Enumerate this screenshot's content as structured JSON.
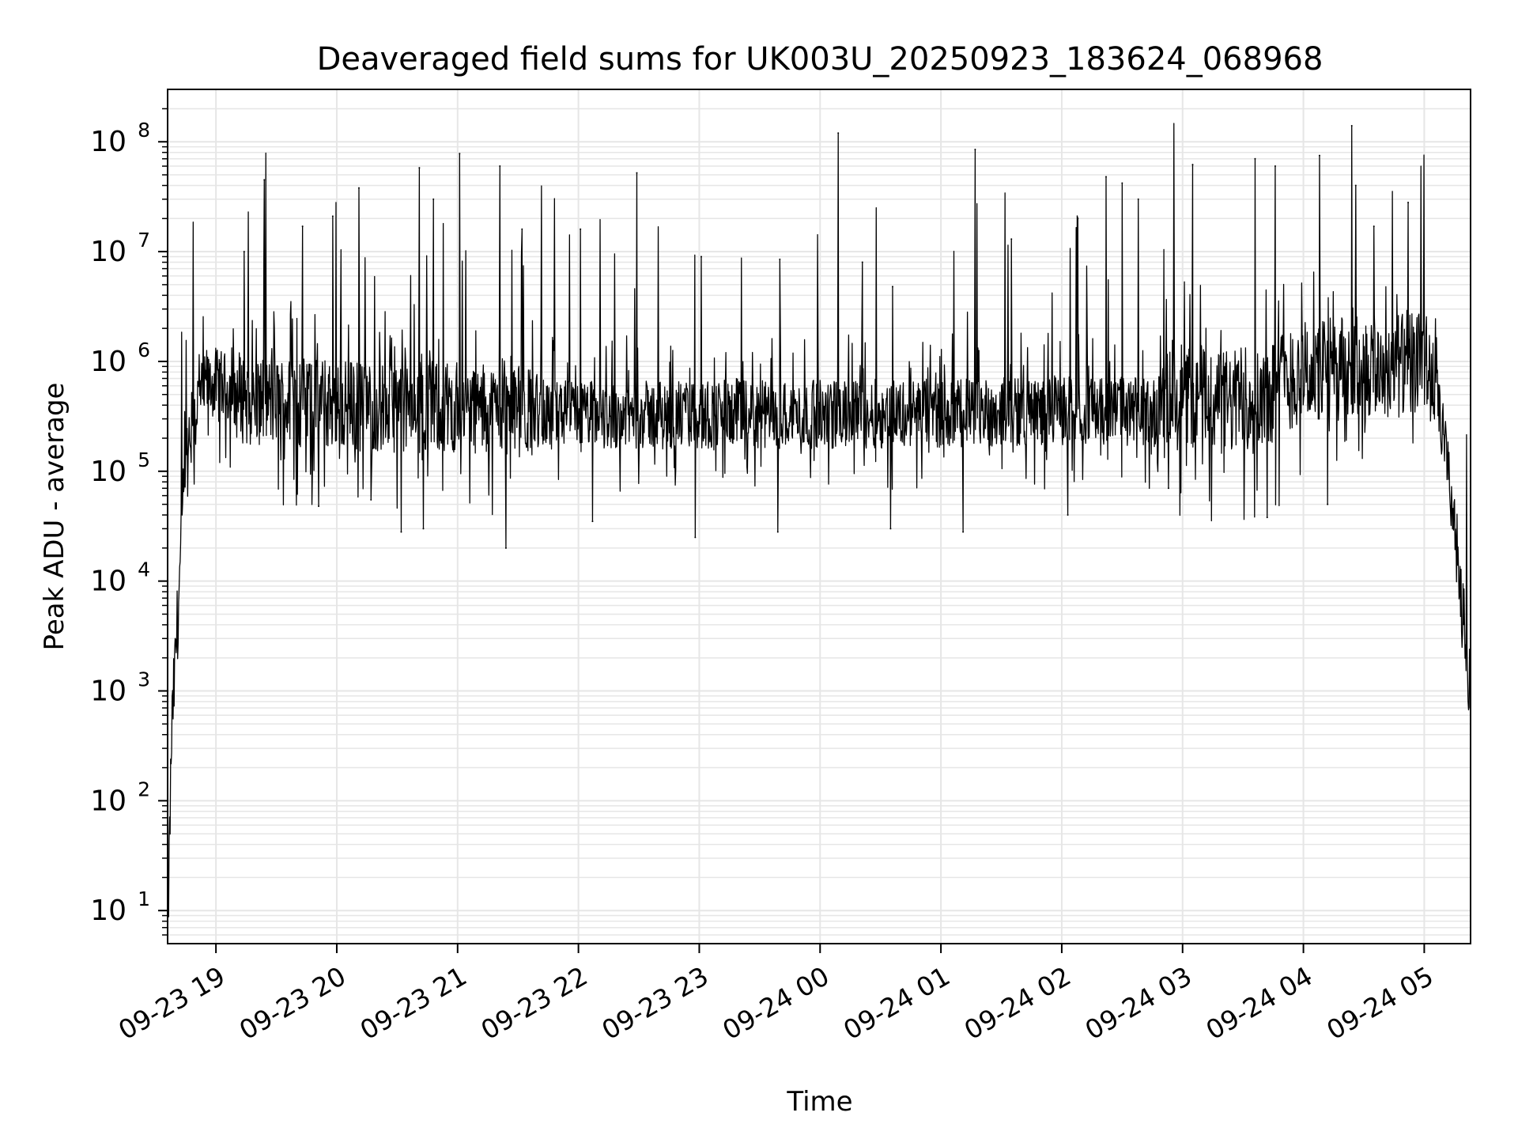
{
  "chart_data": {
    "type": "line",
    "title": "Deaveraged field sums for UK003U_20250923_183624_068968",
    "xlabel": "Time",
    "ylabel": "Peak ADU - average",
    "yscale": "log",
    "ylim": [
      5,
      300000000
    ],
    "xlim": [
      "2025-09-23 18:36",
      "2025-09-24 05:23"
    ],
    "grid": true,
    "line_color": "#000000",
    "grid_color": "#e6e6e6",
    "x_ticks": [
      {
        "value": "2025-09-23 19:00",
        "label": "09-23 19"
      },
      {
        "value": "2025-09-23 20:00",
        "label": "09-23 20"
      },
      {
        "value": "2025-09-23 21:00",
        "label": "09-23 21"
      },
      {
        "value": "2025-09-23 22:00",
        "label": "09-23 22"
      },
      {
        "value": "2025-09-23 23:00",
        "label": "09-23 23"
      },
      {
        "value": "2025-09-24 00:00",
        "label": "09-24 00"
      },
      {
        "value": "2025-09-24 01:00",
        "label": "09-24 01"
      },
      {
        "value": "2025-09-24 02:00",
        "label": "09-24 02"
      },
      {
        "value": "2025-09-24 03:00",
        "label": "09-24 03"
      },
      {
        "value": "2025-09-24 04:00",
        "label": "09-24 04"
      },
      {
        "value": "2025-09-24 05:00",
        "label": "09-24 05"
      }
    ],
    "y_ticks": [
      {
        "value": 10,
        "base": "10",
        "exp": "1"
      },
      {
        "value": 100,
        "base": "10",
        "exp": "2"
      },
      {
        "value": 1000,
        "base": "10",
        "exp": "3"
      },
      {
        "value": 10000,
        "base": "10",
        "exp": "4"
      },
      {
        "value": 100000,
        "base": "10",
        "exp": "5"
      },
      {
        "value": 1000000,
        "base": "10",
        "exp": "6"
      },
      {
        "value": 10000000,
        "base": "10",
        "exp": "7"
      },
      {
        "value": 100000000,
        "base": "10",
        "exp": "8"
      }
    ],
    "series": [
      {
        "baseline": [
          {
            "x": "2025-09-23 18:36",
            "y": 5
          },
          {
            "x": "2025-09-23 18:38",
            "y": 400
          },
          {
            "x": "2025-09-23 18:41",
            "y": 5000
          },
          {
            "x": "2025-09-23 18:44",
            "y": 60000
          },
          {
            "x": "2025-09-23 18:48",
            "y": 250000
          },
          {
            "x": "2025-09-23 18:52",
            "y": 500000
          },
          {
            "x": "2025-09-23 19:00",
            "y": 650000
          },
          {
            "x": "2025-09-23 19:15",
            "y": 450000
          },
          {
            "x": "2025-09-23 20:00",
            "y": 400000
          },
          {
            "x": "2025-09-23 21:00",
            "y": 380000
          },
          {
            "x": "2025-09-23 22:00",
            "y": 330000
          },
          {
            "x": "2025-09-23 23:00",
            "y": 320000
          },
          {
            "x": "2025-09-24 00:00",
            "y": 330000
          },
          {
            "x": "2025-09-24 01:00",
            "y": 340000
          },
          {
            "x": "2025-09-24 02:00",
            "y": 360000
          },
          {
            "x": "2025-09-24 02:45",
            "y": 350000
          },
          {
            "x": "2025-09-24 03:00",
            "y": 500000
          },
          {
            "x": "2025-09-24 03:30",
            "y": 400000
          },
          {
            "x": "2025-09-24 04:00",
            "y": 800000
          },
          {
            "x": "2025-09-24 04:40",
            "y": 900000
          },
          {
            "x": "2025-09-24 05:00",
            "y": 1000000
          },
          {
            "x": "2025-09-24 05:06",
            "y": 500000
          },
          {
            "x": "2025-09-24 05:12",
            "y": 100000
          },
          {
            "x": "2025-09-24 05:17",
            "y": 15000
          },
          {
            "x": "2025-09-24 05:23",
            "y": 800
          }
        ],
        "peaks": [
          {
            "x": "2025-09-23 19:24",
            "y": 45000000
          },
          {
            "x": "2025-09-23 19:14",
            "y": 10000000
          },
          {
            "x": "2025-09-23 19:43",
            "y": 17000000
          },
          {
            "x": "2025-09-23 19:58",
            "y": 21000000
          },
          {
            "x": "2025-09-23 20:11",
            "y": 38000000
          },
          {
            "x": "2025-09-23 20:41",
            "y": 58000000
          },
          {
            "x": "2025-09-23 20:48",
            "y": 30000000
          },
          {
            "x": "2025-09-23 21:01",
            "y": 78000000
          },
          {
            "x": "2025-09-23 21:21",
            "y": 60000000
          },
          {
            "x": "2025-09-23 21:32",
            "y": 16000000
          },
          {
            "x": "2025-09-23 22:29",
            "y": 52000000
          },
          {
            "x": "2025-09-23 22:01",
            "y": 16000000
          },
          {
            "x": "2025-09-23 23:01",
            "y": 9000000
          },
          {
            "x": "2025-09-23 23:40",
            "y": 8500000
          },
          {
            "x": "2025-09-24 00:09",
            "y": 120000000
          },
          {
            "x": "2025-09-24 00:21",
            "y": 8000000
          },
          {
            "x": "2025-09-24 00:36",
            "y": 4800000
          },
          {
            "x": "2025-09-24 01:17",
            "y": 85000000
          },
          {
            "x": "2025-09-24 01:35",
            "y": 13000000
          },
          {
            "x": "2025-09-24 02:08",
            "y": 20000000
          },
          {
            "x": "2025-09-24 02:22",
            "y": 48000000
          },
          {
            "x": "2025-09-24 02:30",
            "y": 42000000
          },
          {
            "x": "2025-09-24 02:38",
            "y": 30000000
          },
          {
            "x": "2025-09-24 03:05",
            "y": 62000000
          },
          {
            "x": "2025-09-24 03:36",
            "y": 70000000
          },
          {
            "x": "2025-09-24 03:46",
            "y": 60000000
          },
          {
            "x": "2025-09-24 04:08",
            "y": 75000000
          },
          {
            "x": "2025-09-24 04:24",
            "y": 140000000
          },
          {
            "x": "2025-09-24 04:26",
            "y": 40000000
          },
          {
            "x": "2025-09-24 04:35",
            "y": 17000000
          },
          {
            "x": "2025-09-24 04:52",
            "y": 28000000
          }
        ],
        "dips": [
          {
            "x": "2025-09-23 19:51",
            "y": 48000
          },
          {
            "x": "2025-09-23 20:17",
            "y": 55000
          },
          {
            "x": "2025-09-23 20:32",
            "y": 28000
          },
          {
            "x": "2025-09-23 20:43",
            "y": 30000
          },
          {
            "x": "2025-09-23 21:24",
            "y": 20000
          },
          {
            "x": "2025-09-23 22:07",
            "y": 35000
          },
          {
            "x": "2025-09-23 22:58",
            "y": 25000
          },
          {
            "x": "2025-09-23 23:39",
            "y": 28000
          },
          {
            "x": "2025-09-24 00:35",
            "y": 30000
          },
          {
            "x": "2025-09-24 01:11",
            "y": 28000
          },
          {
            "x": "2025-09-24 02:03",
            "y": 40000
          },
          {
            "x": "2025-09-24 02:53",
            "y": 70000
          },
          {
            "x": "2025-09-24 03:42",
            "y": 38000
          },
          {
            "x": "2025-09-24 04:12",
            "y": 50000
          }
        ]
      }
    ]
  }
}
